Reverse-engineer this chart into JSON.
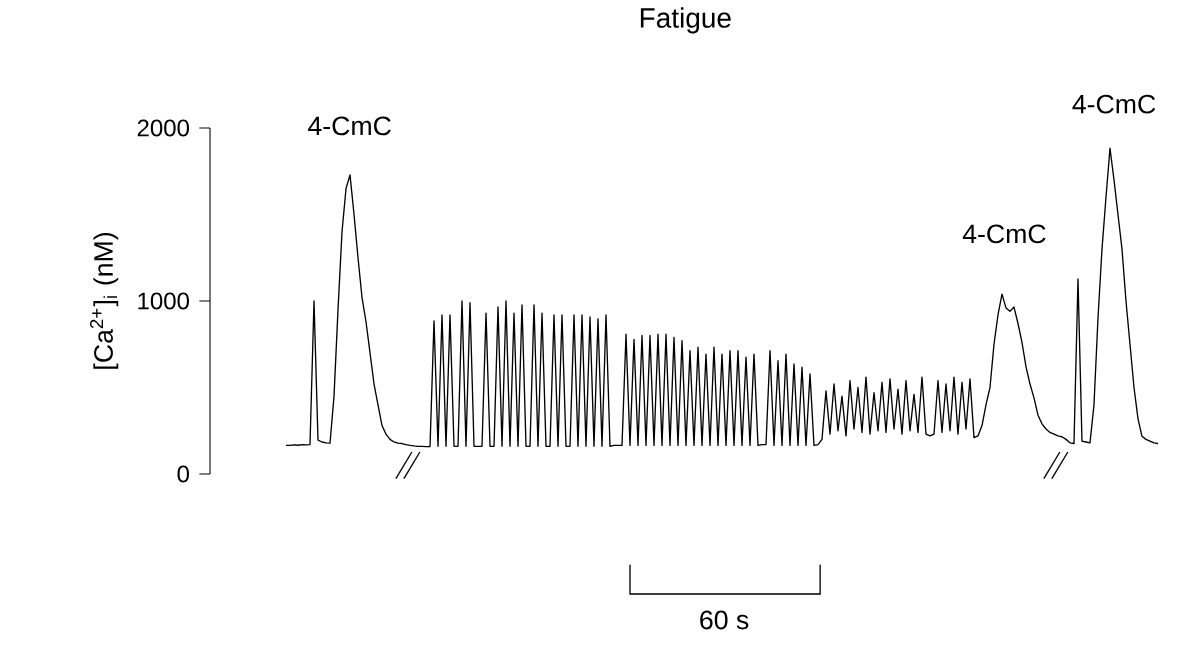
{
  "chart_data": {
    "type": "line",
    "title": "Fatigue",
    "ylabel": "[Ca$^{2+}$]$_{i}$ (nM)",
    "annotations": [
      "4-CmC",
      "4-CmC",
      "4-CmC",
      "60 s"
    ],
    "categories": [
      null,
      null,
      null,
      null,
      null,
      null,
      null,
      null,
      null,
      null,
      null,
      null,
      null,
      null,
      null,
      null,
      null,
      null,
      null,
      null,
      null,
      null,
      null,
      null,
      null,
      null,
      null,
      null,
      null,
      null,
      null,
      null,
      null,
      null,
      null,
      null,
      null,
      null,
      null,
      null,
      null,
      null,
      null,
      null,
      null,
      null,
      null,
      null,
      null,
      null,
      null,
      null,
      null,
      null,
      null,
      null,
      null,
      null,
      null,
      null,
      null,
      null,
      null,
      null,
      null,
      null,
      null,
      null,
      null,
      null,
      null,
      null,
      null,
      null,
      null,
      null,
      null,
      null,
      null,
      null,
      null,
      null,
      null,
      null,
      null,
      null,
      null,
      null,
      null,
      null,
      null,
      null,
      null,
      null,
      null,
      null,
      null,
      null,
      null,
      null,
      null,
      null,
      null,
      null,
      null,
      null,
      null,
      null,
      null,
      null,
      null,
      null,
      null,
      null,
      null,
      null,
      null,
      null,
      null,
      null,
      null,
      null,
      null,
      null,
      null,
      null,
      null,
      null,
      null,
      null,
      null,
      null,
      null,
      null,
      null,
      null,
      null,
      null,
      null,
      null,
      null,
      null,
      null,
      null,
      null,
      null,
      null,
      null,
      null,
      null,
      null,
      null,
      null,
      null,
      null,
      null,
      null,
      null,
      null,
      null,
      null,
      null,
      null,
      null,
      null,
      null,
      null,
      null,
      null,
      null,
      null,
      null,
      null,
      null,
      null,
      null,
      null,
      null,
      null,
      null,
      null,
      null,
      null,
      null,
      null,
      null,
      null,
      null,
      null,
      null,
      null,
      null,
      null,
      null,
      null,
      null,
      null,
      null,
      null,
      null,
      null,
      null,
      null,
      null,
      null,
      null,
      null,
      null,
      null,
      null,
      null,
      null,
      null,
      null,
      null,
      null,
      null,
      null,
      null
    ],
    "values": [
      165,
      165,
      168,
      166,
      170,
      168,
      170,
      1000,
      196,
      185,
      180,
      178,
      450,
      950,
      1400,
      1650,
      1729,
      1500,
      1250,
      1020,
      880,
      700,
      520,
      400,
      280,
      230,
      200,
      185,
      178,
      176,
      170,
      165,
      162,
      160,
      160,
      158,
      158,
      885,
      160,
      920,
      160,
      920,
      160,
      160,
      1000,
      160,
      990,
      160,
      160,
      160,
      930,
      160,
      160,
      966,
      160,
      1000,
      160,
      930,
      160,
      978,
      160,
      160,
      978,
      160,
      930,
      160,
      160,
      920,
      160,
      920,
      160,
      160,
      920,
      160,
      920,
      160,
      908,
      160,
      897,
      160,
      920,
      160,
      165,
      165,
      165,
      808,
      165,
      778,
      165,
      801,
      165,
      801,
      165,
      808,
      165,
      808,
      165,
      790,
      165,
      770,
      165,
      713,
      165,
      733,
      165,
      693,
      165,
      733,
      165,
      693,
      165,
      713,
      165,
      713,
      165,
      675,
      165,
      693,
      165,
      170,
      170,
      713,
      165,
      655,
      165,
      693,
      165,
      636,
      165,
      617,
      165,
      579,
      165,
      170,
      200,
      480,
      230,
      520,
      250,
      450,
      220,
      540,
      260,
      500,
      240,
      560,
      230,
      470,
      250,
      530,
      240,
      550,
      260,
      490,
      230,
      540,
      250,
      460,
      240,
      560,
      230,
      220,
      230,
      540,
      240,
      520,
      250,
      560,
      230,
      530,
      260,
      550,
      210,
      220,
      280,
      400,
      500,
      750,
      920,
      1040,
      960,
      940,
      965,
      870,
      760,
      620,
      520,
      440,
      340,
      290,
      260,
      240,
      230,
      220,
      215,
      200,
      180,
      176,
      1127,
      190,
      185,
      180,
      400,
      900,
      1300,
      1600,
      1883,
      1700,
      1500,
      1300,
      1000,
      750,
      500,
      320,
      218,
      200,
      190,
      180,
      176
    ],
    "color": "#000000",
    "line_style": "solid",
    "ylim": [
      0,
      2000
    ],
    "yticks": [
      0,
      1000,
      2000
    ],
    "tick_labels": "y"
  }
}
